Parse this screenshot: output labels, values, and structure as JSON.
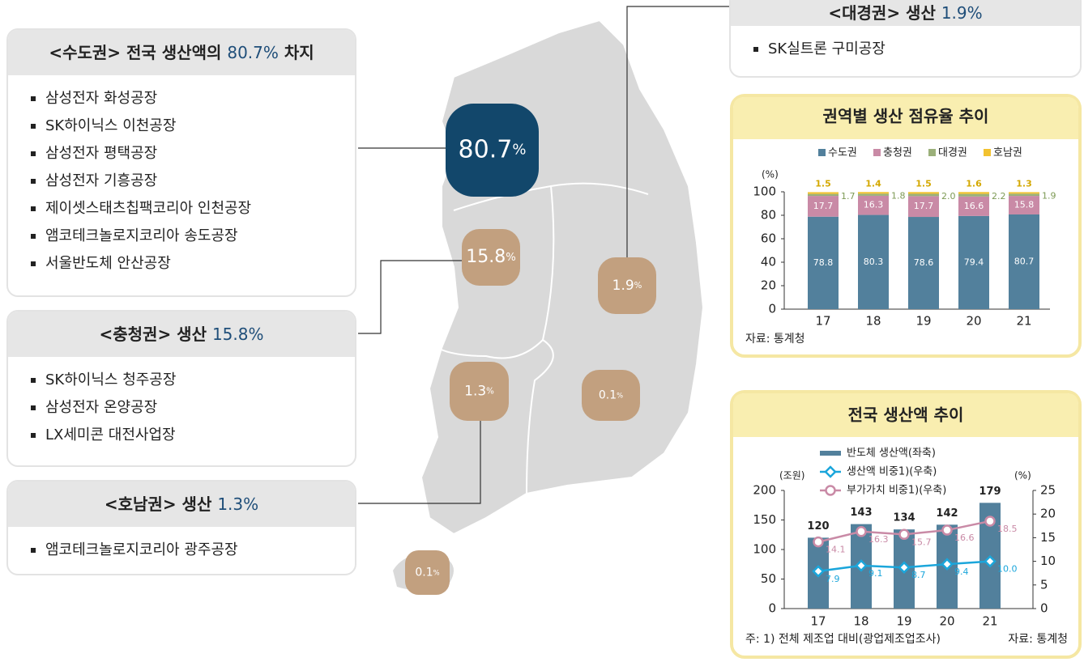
{
  "boxes": [
    {
      "title_prefix": "<수도권> 전국 생산액의 ",
      "title_value": "80.7%",
      "title_suffix": " 차지",
      "items": [
        "삼성전자 화성공장",
        "SK하이닉스 이천공장",
        "삼성전자 평택공장",
        "삼성전자 기흥공장",
        "제이셋스태츠칩팩코리아 인천공장",
        "앰코테크놀로지코리아 송도공장",
        "서울반도체 안산공장"
      ]
    },
    {
      "title_prefix": "<충청권> 생산 ",
      "title_value": "15.8%",
      "items": [
        "SK하이닉스 청주공장",
        "삼성전자 온양공장",
        "LX세미콘 대전사업장"
      ]
    },
    {
      "title_prefix": "<호남권> 생산 ",
      "title_value": "1.3%",
      "items": [
        "앰코테크놀로지코리아 광주공장"
      ]
    },
    {
      "title_prefix": "<대경권> 생산 ",
      "title_value": "1.9%",
      "items": [
        "SK실트론 구미공장"
      ]
    }
  ],
  "map_labels": [
    {
      "num": "80.7",
      "unit": "%"
    },
    {
      "num": "15.8",
      "unit": "%"
    },
    {
      "num": "1.9",
      "unit": "%"
    },
    {
      "num": "1.3",
      "unit": "%"
    },
    {
      "num": "0.1",
      "unit": "%"
    },
    {
      "num": "0.1",
      "unit": "%"
    }
  ],
  "chart_data": [
    {
      "type": "stacked_bar",
      "title": "권역별 생산 점유율 추이",
      "y_unit": "(%)",
      "source": "자료: 통계청",
      "categories": [
        "17",
        "18",
        "19",
        "20",
        "21"
      ],
      "series": [
        {
          "name": "수도권",
          "color": "#52809c",
          "values": [
            78.8,
            80.3,
            78.6,
            79.4,
            80.7
          ],
          "value_labels": [
            "78.8",
            "80.3",
            "78.6",
            "79.4",
            "80.7"
          ]
        },
        {
          "name": "충청권",
          "color": "#c98aa6",
          "values": [
            17.7,
            16.3,
            17.7,
            16.6,
            15.8
          ],
          "value_labels": [
            "17.7",
            "16.3",
            "17.7",
            "16.6",
            "15.8"
          ]
        },
        {
          "name": "대경권",
          "color": "#9bb07a",
          "values": [
            1.7,
            1.8,
            2.0,
            2.2,
            1.9
          ],
          "value_labels": [
            "1.7",
            "1.8",
            "2.0",
            "2.2",
            "1.9"
          ]
        },
        {
          "name": "호남권",
          "color": "#f2c230",
          "values": [
            1.5,
            1.4,
            1.5,
            1.6,
            1.3
          ],
          "value_labels": [
            "1.5",
            "1.4",
            "1.5",
            "1.6",
            "1.3"
          ]
        }
      ],
      "ylim": [
        0,
        100
      ],
      "yticks": [
        0,
        20,
        40,
        60,
        80,
        100
      ]
    },
    {
      "type": "bar_line",
      "title": "전국 생산액 추이",
      "y_unit": "(조원)",
      "y2_unit": "(%)",
      "note": "주: 1) 전체 제조업 대비(광업제조업조사)",
      "source": "자료: 통계청",
      "categories": [
        "17",
        "18",
        "19",
        "20",
        "21"
      ],
      "series": [
        {
          "name": "반도체 생산액(좌축)",
          "color": "#52809c",
          "kind": "bar",
          "values": [
            120,
            143,
            134,
            142,
            179
          ]
        },
        {
          "name": "생산액 비중1)(우축)",
          "color": "#1ba6db",
          "kind": "line",
          "axis": "y2",
          "marker": "diamond",
          "values": [
            7.9,
            9.1,
            8.7,
            9.4,
            10.0
          ],
          "value_labels": [
            "7.9",
            "9.1",
            "8.7",
            "9.4",
            "10.0"
          ]
        },
        {
          "name": "부가가치 비중1)(우축)",
          "color": "#c98aa6",
          "kind": "line",
          "axis": "y2",
          "marker": "circle",
          "values": [
            14.1,
            16.3,
            15.7,
            16.6,
            18.5
          ],
          "value_labels": [
            "14.1",
            "16.3",
            "15.7",
            "16.6",
            "18.5"
          ]
        }
      ],
      "ylim": [
        0,
        200
      ],
      "yticks": [
        0,
        50,
        100,
        150,
        200
      ],
      "y2lim": [
        0,
        25
      ],
      "y2ticks": [
        0,
        5,
        10,
        15,
        20,
        25
      ]
    }
  ]
}
